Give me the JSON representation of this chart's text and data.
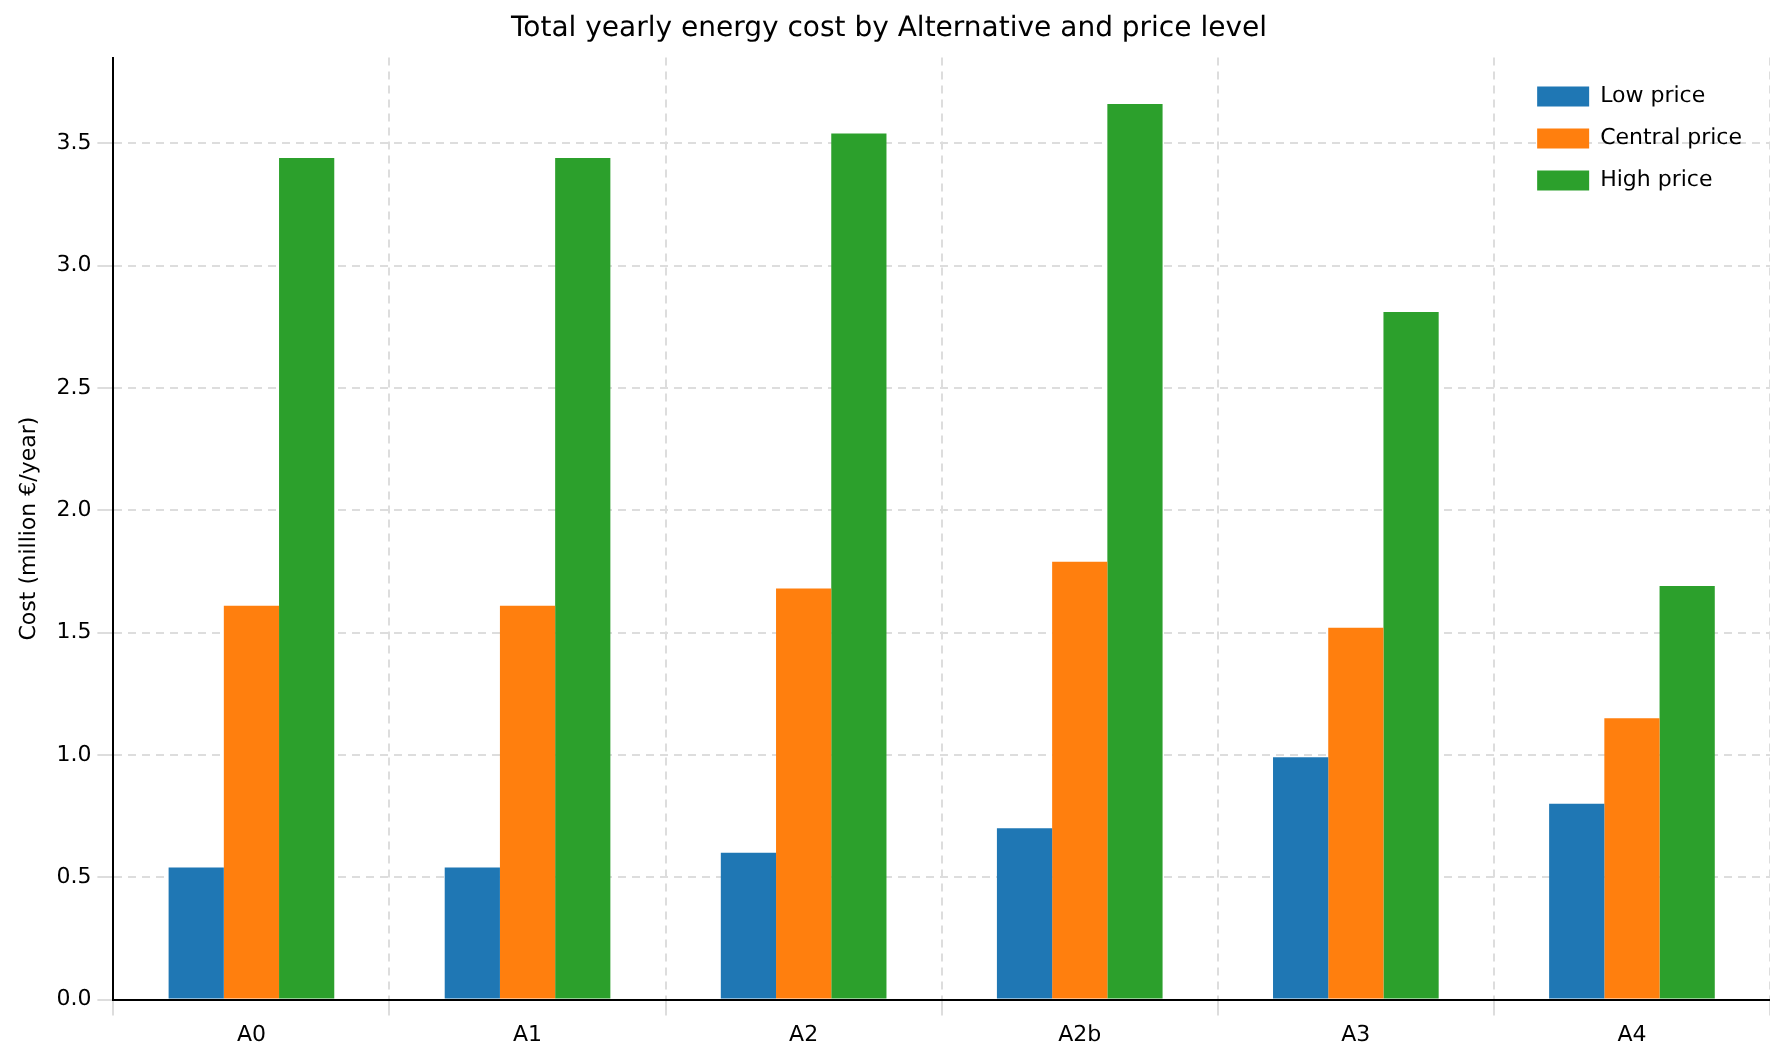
{
  "chart_data": {
    "type": "bar",
    "title": "Total yearly energy cost by Alternative and price level",
    "ylabel": "Cost (million €/year)",
    "categories": [
      "A0",
      "A1",
      "A2",
      "A2b",
      "A3",
      "A4"
    ],
    "series": [
      {
        "name": "Low price",
        "color": "#1f77b4",
        "values": [
          0.54,
          0.54,
          0.6,
          0.7,
          0.99,
          0.8
        ]
      },
      {
        "name": "Central price",
        "color": "#ff7f0e",
        "values": [
          1.61,
          1.61,
          1.68,
          1.79,
          1.52,
          1.15
        ]
      },
      {
        "name": "High price",
        "color": "#2ca02c",
        "values": [
          3.44,
          3.44,
          3.54,
          3.66,
          2.81,
          1.69
        ]
      }
    ],
    "ylim": [
      0,
      3.85
    ],
    "yticks": [
      {
        "value": 0,
        "label": "0.0"
      },
      0.5,
      {
        "value": 1,
        "label": "1.0"
      },
      1.5,
      {
        "value": 2,
        "label": "2.0"
      },
      2.5,
      {
        "value": 3,
        "label": "3.0"
      },
      3.5
    ],
    "grid": true,
    "legend": "top right"
  }
}
